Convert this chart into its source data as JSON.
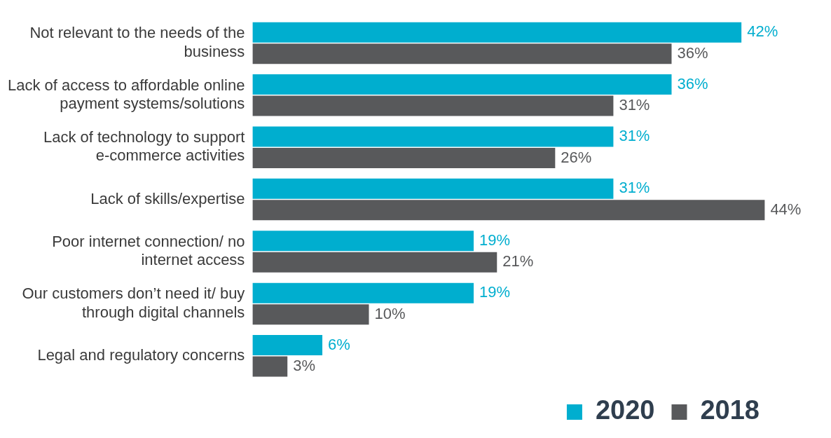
{
  "chart_data": {
    "type": "bar",
    "orientation": "horizontal",
    "categories": [
      "Not relevant to the needs of the business",
      "Lack of access to affordable online payment systems/solutions",
      "Lack of technology to support e-commerce activities",
      "Lack of skills/expertise",
      "Poor internet connection/ no internet access",
      "Our customers don’t need it/ buy through digital channels",
      "Legal and regulatory concerns"
    ],
    "series": [
      {
        "name": "2020",
        "color": "#00aecf",
        "values": [
          42,
          36,
          31,
          31,
          19,
          19,
          6
        ],
        "value_labels": [
          "42%",
          "36%",
          "31%",
          "31%",
          "19%",
          "19%",
          "6%"
        ]
      },
      {
        "name": "2018",
        "color": "#58595b",
        "values": [
          36,
          31,
          26,
          44,
          21,
          10,
          3
        ],
        "value_labels": [
          "36%",
          "31%",
          "26%",
          "44%",
          "21%",
          "10%",
          "3%"
        ]
      }
    ],
    "legend": "bottom right"
  }
}
